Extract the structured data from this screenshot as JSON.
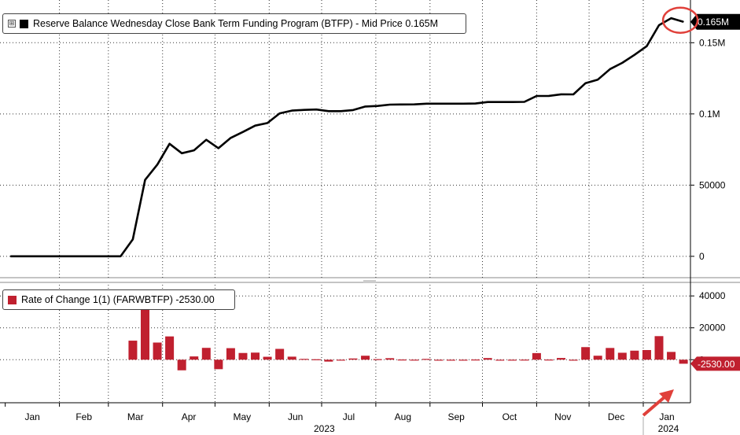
{
  "top_legend": {
    "icon": "expand-box-icon",
    "text": "Reserve Balance Wednesday Close Bank Term Funding Program (BTFP) - Mid Price 0.165M",
    "color": "#000000"
  },
  "bottom_legend": {
    "text": "Rate of Change 1(1) (FARWBTFP) -2530.00",
    "color": "#c0202f"
  },
  "chart_data": [
    {
      "type": "line",
      "name": "Reserve Balance Wednesday Close Bank Term Funding Program (BTFP) - Mid Price",
      "x": [
        "2023-01-04",
        "2023-01-11",
        "2023-01-18",
        "2023-01-25",
        "2023-02-01",
        "2023-02-08",
        "2023-02-15",
        "2023-02-22",
        "2023-03-01",
        "2023-03-08",
        "2023-03-15",
        "2023-03-22",
        "2023-03-29",
        "2023-04-05",
        "2023-04-12",
        "2023-04-19",
        "2023-04-26",
        "2023-05-03",
        "2023-05-10",
        "2023-05-17",
        "2023-05-24",
        "2023-05-31",
        "2023-06-07",
        "2023-06-14",
        "2023-06-21",
        "2023-06-28",
        "2023-07-05",
        "2023-07-12",
        "2023-07-19",
        "2023-07-26",
        "2023-08-02",
        "2023-08-09",
        "2023-08-16",
        "2023-08-23",
        "2023-08-30",
        "2023-09-06",
        "2023-09-13",
        "2023-09-20",
        "2023-09-27",
        "2023-10-04",
        "2023-10-11",
        "2023-10-18",
        "2023-10-25",
        "2023-11-01",
        "2023-11-08",
        "2023-11-15",
        "2023-11-22",
        "2023-11-29",
        "2023-12-06",
        "2023-12-13",
        "2023-12-20",
        "2023-12-27",
        "2024-01-03",
        "2024-01-10",
        "2024-01-17",
        "2024-01-24"
      ],
      "y": [
        0,
        0,
        0,
        0,
        0,
        0,
        0,
        0,
        0,
        0,
        11943,
        53669,
        64417,
        79022,
        72365,
        74418,
        81847,
        75899,
        83139,
        87353,
        91797,
        93631,
        100421,
        102329,
        102844,
        103127,
        101945,
        101963,
        102733,
        105223,
        105591,
        106541,
        106660,
        106701,
        107198,
        107184,
        107189,
        107198,
        107317,
        108353,
        108360,
        108380,
        108446,
        112590,
        112685,
        113768,
        113736,
        121630,
        124122,
        131480,
        135839,
        141509,
        147563,
        162347,
        167230,
        164700
      ],
      "ylim": [
        -15000,
        180000
      ],
      "yticks": [
        0,
        50000,
        100000,
        150000
      ],
      "ytick_labels": [
        "0",
        "50000",
        "0.1M",
        "0.15M"
      ],
      "current_label": "0.165M",
      "current_value": 164700,
      "highlight": "red circle around latest value"
    },
    {
      "type": "bar",
      "name": "Rate of Change 1(1) (FARWBTFP)",
      "x": [
        "2023-01-04",
        "2023-01-11",
        "2023-01-18",
        "2023-01-25",
        "2023-02-01",
        "2023-02-08",
        "2023-02-15",
        "2023-02-22",
        "2023-03-01",
        "2023-03-08",
        "2023-03-15",
        "2023-03-22",
        "2023-03-29",
        "2023-04-05",
        "2023-04-12",
        "2023-04-19",
        "2023-04-26",
        "2023-05-03",
        "2023-05-10",
        "2023-05-17",
        "2023-05-24",
        "2023-05-31",
        "2023-06-07",
        "2023-06-14",
        "2023-06-21",
        "2023-06-28",
        "2023-07-05",
        "2023-07-12",
        "2023-07-19",
        "2023-07-26",
        "2023-08-02",
        "2023-08-09",
        "2023-08-16",
        "2023-08-23",
        "2023-08-30",
        "2023-09-06",
        "2023-09-13",
        "2023-09-20",
        "2023-09-27",
        "2023-10-04",
        "2023-10-11",
        "2023-10-18",
        "2023-10-25",
        "2023-11-01",
        "2023-11-08",
        "2023-11-15",
        "2023-11-22",
        "2023-11-29",
        "2023-12-06",
        "2023-12-13",
        "2023-12-20",
        "2023-12-27",
        "2024-01-03",
        "2024-01-10",
        "2024-01-17",
        "2024-01-24"
      ],
      "values": [
        0,
        0,
        0,
        0,
        0,
        0,
        0,
        0,
        0,
        0,
        11943,
        41726,
        10748,
        14605,
        -6657,
        2053,
        7429,
        -5948,
        7240,
        4214,
        4444,
        1834,
        6790,
        1908,
        515,
        283,
        -1182,
        18,
        770,
        2490,
        368,
        950,
        119,
        41,
        497,
        -14,
        5,
        9,
        119,
        1036,
        7,
        20,
        66,
        4144,
        95,
        1083,
        -32,
        7894,
        2492,
        7358,
        4359,
        5670,
        6054,
        14784,
        4883,
        -2530
      ],
      "ylim": [
        -27000,
        47000
      ],
      "yticks": [
        0,
        20000,
        40000
      ],
      "ytick_labels": [
        "0",
        "20000",
        "40000"
      ],
      "current_label": "-2530.00",
      "current_value": -2530,
      "color": "#c0202f",
      "highlight": "red arrow pointing at latest bar"
    }
  ],
  "x_axis": {
    "months": [
      "Jan",
      "Feb",
      "Mar",
      "Apr",
      "May",
      "Jun",
      "Jul",
      "Aug",
      "Sep",
      "Oct",
      "Nov",
      "Dec",
      "Jan"
    ],
    "years": [
      "2023",
      "2024"
    ]
  },
  "colors": {
    "line": "#000000",
    "bars": "#c0202f",
    "highlight": "#e0403a",
    "grid": "#333333"
  }
}
